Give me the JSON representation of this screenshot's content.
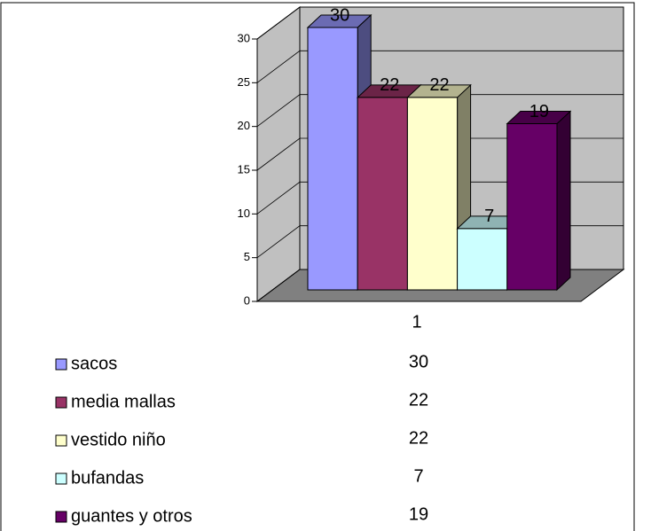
{
  "chart_data": {
    "type": "bar3d",
    "categories": [
      "1"
    ],
    "series": [
      {
        "name": "sacos",
        "color": "#9999ff",
        "values": [
          30
        ]
      },
      {
        "name": "media mallas",
        "color": "#993366",
        "values": [
          22
        ]
      },
      {
        "name": "vestido niño",
        "color": "#ffffcc",
        "values": [
          22
        ]
      },
      {
        "name": "bufandas",
        "color": "#ccffff",
        "values": [
          7
        ]
      },
      {
        "name": "guantes y otros",
        "color": "#660066",
        "values": [
          19
        ]
      }
    ],
    "ylim": [
      0,
      30
    ],
    "yticks": [
      0,
      5,
      10,
      15,
      20,
      25,
      30
    ],
    "grid": true,
    "legend": "bottom"
  }
}
